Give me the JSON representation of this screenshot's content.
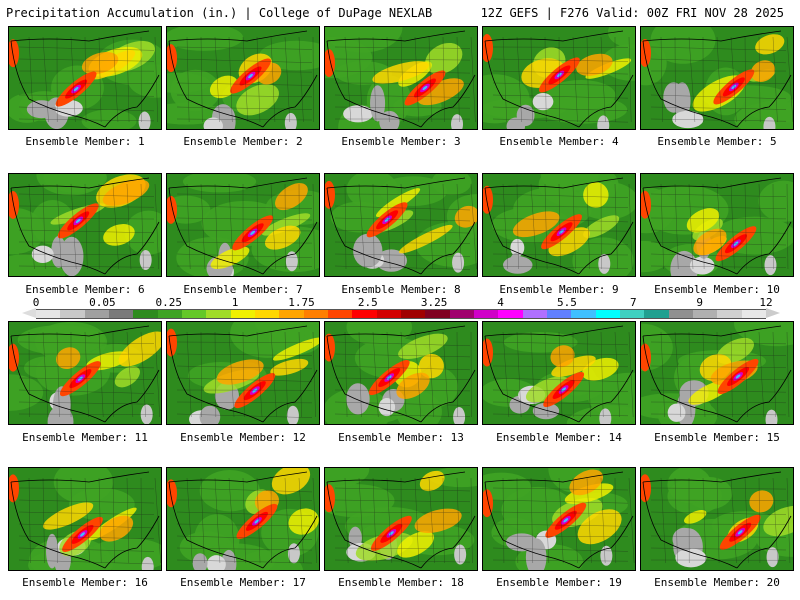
{
  "header": {
    "title": "Precipitation Accumulation (in.) | College of DuPage NEXLAB",
    "run": "12Z GEFS | F276 Valid: 00Z FRI NOV 28 2025"
  },
  "members": [
    {
      "label": "Ensemble Member: 1"
    },
    {
      "label": "Ensemble Member: 2"
    },
    {
      "label": "Ensemble Member: 3"
    },
    {
      "label": "Ensemble Member: 4"
    },
    {
      "label": "Ensemble Member: 5"
    },
    {
      "label": "Ensemble Member: 6"
    },
    {
      "label": "Ensemble Member: 7"
    },
    {
      "label": "Ensemble Member: 8"
    },
    {
      "label": "Ensemble Member: 9"
    },
    {
      "label": "Ensemble Member: 10"
    },
    {
      "label": "Ensemble Member: 11"
    },
    {
      "label": "Ensemble Member: 12"
    },
    {
      "label": "Ensemble Member: 13"
    },
    {
      "label": "Ensemble Member: 14"
    },
    {
      "label": "Ensemble Member: 15"
    },
    {
      "label": "Ensemble Member: 16"
    },
    {
      "label": "Ensemble Member: 17"
    },
    {
      "label": "Ensemble Member: 18"
    },
    {
      "label": "Ensemble Member: 19"
    },
    {
      "label": "Ensemble Member: 20"
    }
  ],
  "legend": {
    "labels": [
      "0",
      "0.05",
      "0.25",
      "1",
      "1.75",
      "2.5",
      "3.25",
      "4",
      "5.5",
      "7",
      "9",
      "12"
    ],
    "colors": [
      "#e6e6e6",
      "#c8c8c8",
      "#a0a0a0",
      "#7a7a7a",
      "#2e8b1e",
      "#3fa324",
      "#64c828",
      "#a0dc28",
      "#f0f000",
      "#ffd700",
      "#ffa500",
      "#ff7f00",
      "#ff4500",
      "#ff0000",
      "#d20000",
      "#a00000",
      "#800020",
      "#a0006e",
      "#d000c8",
      "#ff00ff",
      "#b070ff",
      "#6080ff",
      "#40c0ff",
      "#00ffff",
      "#40d0c0",
      "#20a090",
      "#909090",
      "#b0b0b0",
      "#d0d0d0",
      "#e8e8e8"
    ]
  }
}
